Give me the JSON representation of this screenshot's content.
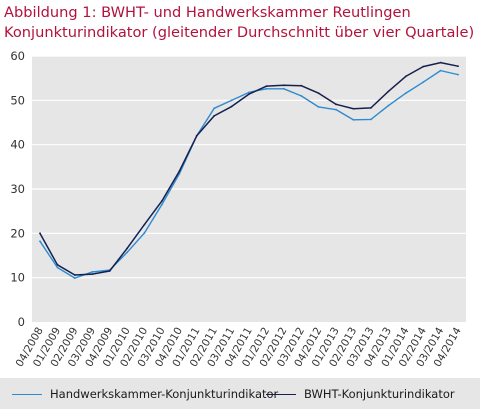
{
  "title": {
    "line1": "Abbildung 1: BWHT- und Handwerkskammer  Reutlingen",
    "line2": "Konjunkturindikator (gleitender Durchschnitt über vier Quartale)"
  },
  "colors": {
    "title": "#b2123d",
    "plot_background": "#e6e6e6",
    "grid": "#ffffff",
    "series_light": "#2e8bd1",
    "series_dark": "#16204f"
  },
  "chart_data": {
    "type": "line",
    "title": "Abbildung 1: BWHT- und Handwerkskammer  Reutlingen Konjunkturindikator (gleitender Durchschnitt über vier Quartale)",
    "xlabel": "",
    "ylabel": "",
    "ylim": [
      0,
      60
    ],
    "yticks": [
      0,
      10,
      20,
      30,
      40,
      50,
      60
    ],
    "grid": "horizontal",
    "legend_position": "bottom",
    "categories": [
      "04/2008",
      "01/2009",
      "02/2009",
      "03/2009",
      "04/2009",
      "01/2010",
      "02/2010",
      "03/2010",
      "04/2010",
      "01/2011",
      "02/2011",
      "03/2011",
      "04/2011",
      "01/2012",
      "02/2012",
      "03/2012",
      "04/2012",
      "01/2013",
      "02/2013",
      "03/2013",
      "04/2013",
      "01/2014",
      "02/2014",
      "03/2014",
      "04/2014"
    ],
    "series": [
      {
        "name": "Handwerkskammer-Konjunkturindikator",
        "color": "#2e8bd1",
        "values": [
          18.2,
          12.3,
          9.9,
          11.3,
          11.7,
          15.7,
          20.1,
          26.5,
          33.4,
          42.0,
          48.2,
          50.0,
          51.8,
          52.6,
          52.6,
          51.0,
          48.5,
          47.9,
          45.6,
          45.7,
          48.8,
          51.6,
          54.1,
          56.7,
          55.8
        ]
      },
      {
        "name": "BWHT-Konjunkturindikator",
        "color": "#16204f",
        "values": [
          20.0,
          12.9,
          10.6,
          10.8,
          11.5,
          16.6,
          22.0,
          27.3,
          34.0,
          42.0,
          46.5,
          48.6,
          51.4,
          53.2,
          53.4,
          53.3,
          51.6,
          49.1,
          48.1,
          48.3,
          52.0,
          55.4,
          57.6,
          58.5,
          57.7
        ]
      }
    ]
  }
}
